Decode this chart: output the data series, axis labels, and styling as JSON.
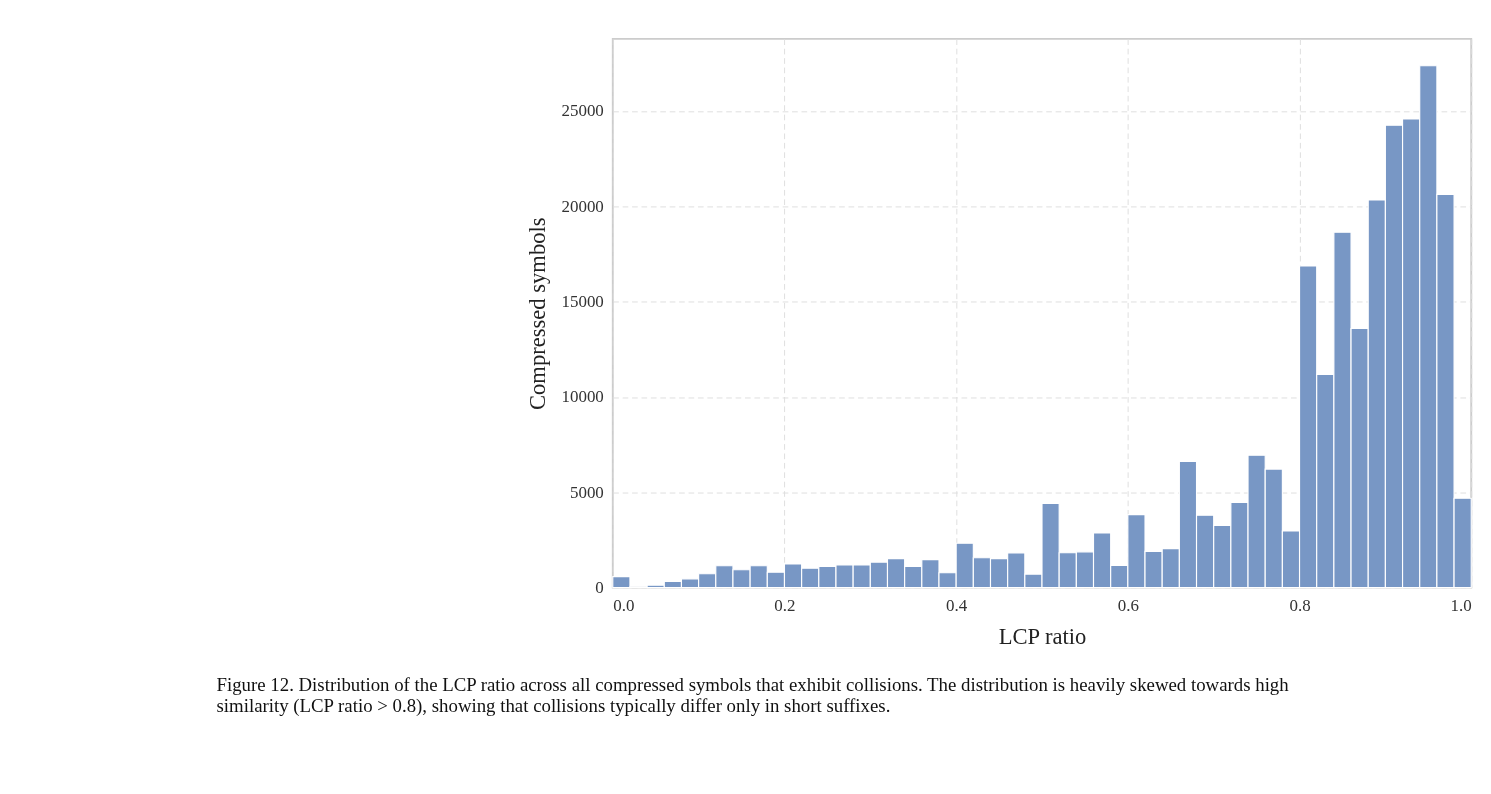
{
  "chart_data": {
    "type": "histogram",
    "xlabel": "LCP ratio",
    "ylabel": "Compressed symbols",
    "bins": [
      0.0,
      0.02,
      0.04,
      0.06,
      0.08,
      0.1,
      0.12,
      0.14,
      0.16,
      0.18,
      0.2,
      0.22,
      0.24,
      0.26,
      0.28,
      0.3,
      0.32,
      0.34,
      0.36,
      0.38,
      0.4,
      0.42,
      0.44,
      0.46,
      0.48,
      0.5,
      0.52,
      0.54,
      0.56,
      0.58,
      0.6,
      0.62,
      0.64,
      0.66,
      0.68,
      0.7,
      0.72,
      0.74,
      0.76,
      0.78,
      0.8,
      0.82,
      0.84,
      0.86,
      0.88,
      0.9,
      0.92,
      0.94,
      0.96,
      0.98,
      1.0
    ],
    "values": [
      580,
      40,
      130,
      320,
      460,
      730,
      1150,
      940,
      1150,
      810,
      1240,
      1020,
      1110,
      1190,
      1190,
      1340,
      1520,
      1110,
      1470,
      780,
      2330,
      1570,
      1520,
      1820,
      710,
      4420,
      1830,
      1880,
      2870,
      1170,
      3830,
      1900,
      2050,
      6620,
      3800,
      3270,
      4470,
      6950,
      6220,
      2970,
      16880,
      11190,
      18650,
      13600,
      20350,
      24270,
      24600,
      27390,
      20640,
      4690
    ],
    "color": "#7897c5",
    "xlim": [
      0.0,
      1.0
    ],
    "xticks": [
      {
        "value": 0.0,
        "label": "0.0"
      },
      {
        "value": 0.2,
        "label": "0.2"
      },
      {
        "value": 0.4,
        "label": "0.4"
      },
      {
        "value": 0.6,
        "label": "0.6"
      },
      {
        "value": 0.8,
        "label": "0.8"
      },
      {
        "value": 1.0,
        "label": "1.0"
      }
    ],
    "ylim": [
      0,
      28800
    ],
    "yticks": [
      0,
      5000,
      10000,
      15000,
      20000,
      25000
    ],
    "grid": true,
    "annotations": [
      "Figure 12. Distribution of the LCP ratio across all compressed symbols that exhibit collisions. The distribution is heavily skewed towards high similarity (LCP ratio > 0.8), showing that collisions typically differ only in short suffixes."
    ]
  }
}
